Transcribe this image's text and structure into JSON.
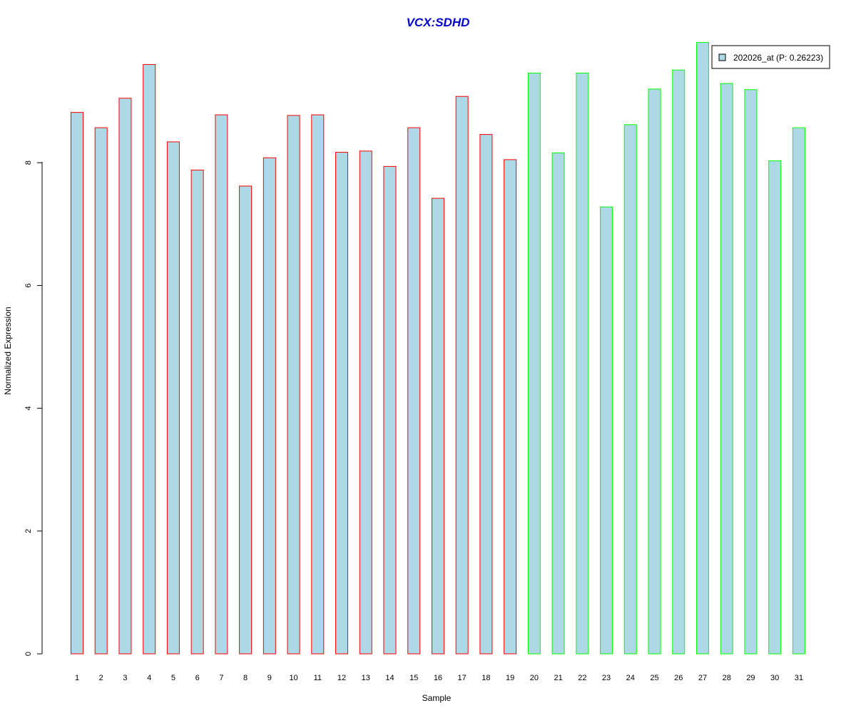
{
  "chart_data": {
    "type": "bar",
    "title": "VCX:SDHD",
    "xlabel": "Sample",
    "ylabel": "Normalized Expression",
    "ylim": [
      0,
      10
    ],
    "y_ticks": [
      "0",
      "2",
      "4",
      "6",
      "8"
    ],
    "categories": [
      "1",
      "2",
      "3",
      "4",
      "5",
      "6",
      "7",
      "8",
      "9",
      "10",
      "11",
      "12",
      "13",
      "14",
      "15",
      "16",
      "17",
      "18",
      "19",
      "20",
      "21",
      "22",
      "23",
      "24",
      "25",
      "26",
      "27",
      "28",
      "29",
      "30",
      "31"
    ],
    "series": [
      {
        "name": "202026_at (P: 0.26223)",
        "values": [
          8.82,
          8.57,
          9.05,
          9.6,
          8.34,
          7.88,
          8.78,
          7.62,
          8.08,
          8.77,
          8.78,
          8.17,
          8.19,
          7.94,
          8.57,
          7.42,
          9.08,
          8.46,
          8.05,
          9.46,
          8.16,
          9.46,
          7.28,
          8.62,
          9.2,
          9.51,
          9.96,
          9.29,
          9.19,
          8.03,
          8.57
        ]
      }
    ],
    "groups": [
      {
        "samples": "1-19",
        "border_color": "#ff0000"
      },
      {
        "samples": "20-31",
        "border_color": "#00ff00"
      }
    ],
    "legend": {
      "position": "top-right",
      "label": "202026_at (P: 0.26223)"
    },
    "bar_fill": "#add8e6",
    "title_color": "#0000cc",
    "grid": false
  }
}
